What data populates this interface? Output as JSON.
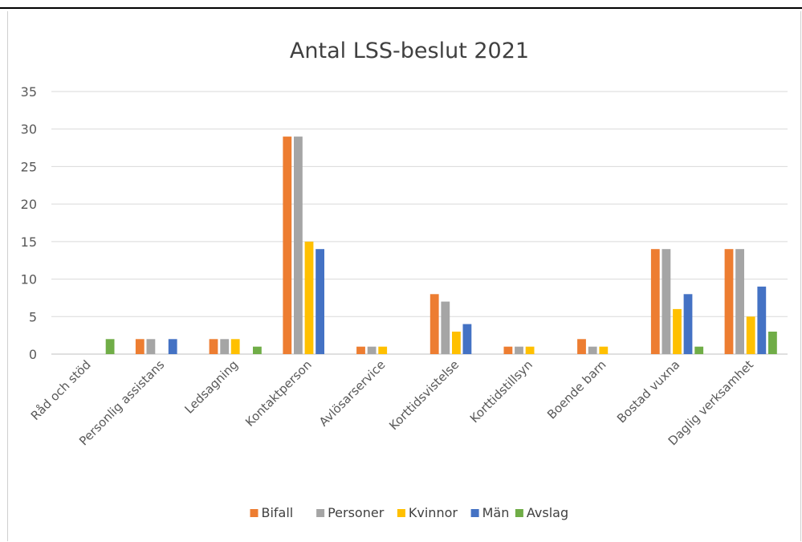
{
  "chart_data": {
    "type": "bar",
    "title": "Antal LSS-beslut 2021",
    "xlabel": "",
    "ylabel": "",
    "ylim": [
      0,
      35
    ],
    "yticks": [
      0,
      5,
      10,
      15,
      20,
      25,
      30,
      35
    ],
    "grid": true,
    "legend_position": "bottom",
    "categories": [
      "Råd och stöd",
      "Personlig assistans",
      "Ledsagning",
      "Kontaktperson",
      "Avlösarservice",
      "Korttidsvistelse",
      "Korttidstillsyn",
      "Boende barn",
      "Bostad vuxna",
      "Daglig verksamhet"
    ],
    "series": [
      {
        "name": "Bifall",
        "color": "#ED7D31",
        "values": [
          0,
          2,
          2,
          29,
          1,
          8,
          1,
          2,
          14,
          14
        ]
      },
      {
        "name": "Personer",
        "color": "#A5A5A5",
        "values": [
          0,
          2,
          2,
          29,
          1,
          7,
          1,
          1,
          14,
          14
        ]
      },
      {
        "name": "Kvinnor",
        "color": "#FFC000",
        "values": [
          0,
          0,
          2,
          15,
          1,
          3,
          1,
          1,
          6,
          5
        ]
      },
      {
        "name": "Män",
        "color": "#4472C4",
        "values": [
          0,
          2,
          0,
          14,
          0,
          4,
          0,
          0,
          8,
          9
        ]
      },
      {
        "name": "Avslag",
        "color": "#70AD47",
        "values": [
          2,
          0,
          1,
          0,
          0,
          0,
          0,
          0,
          1,
          3
        ]
      }
    ]
  }
}
